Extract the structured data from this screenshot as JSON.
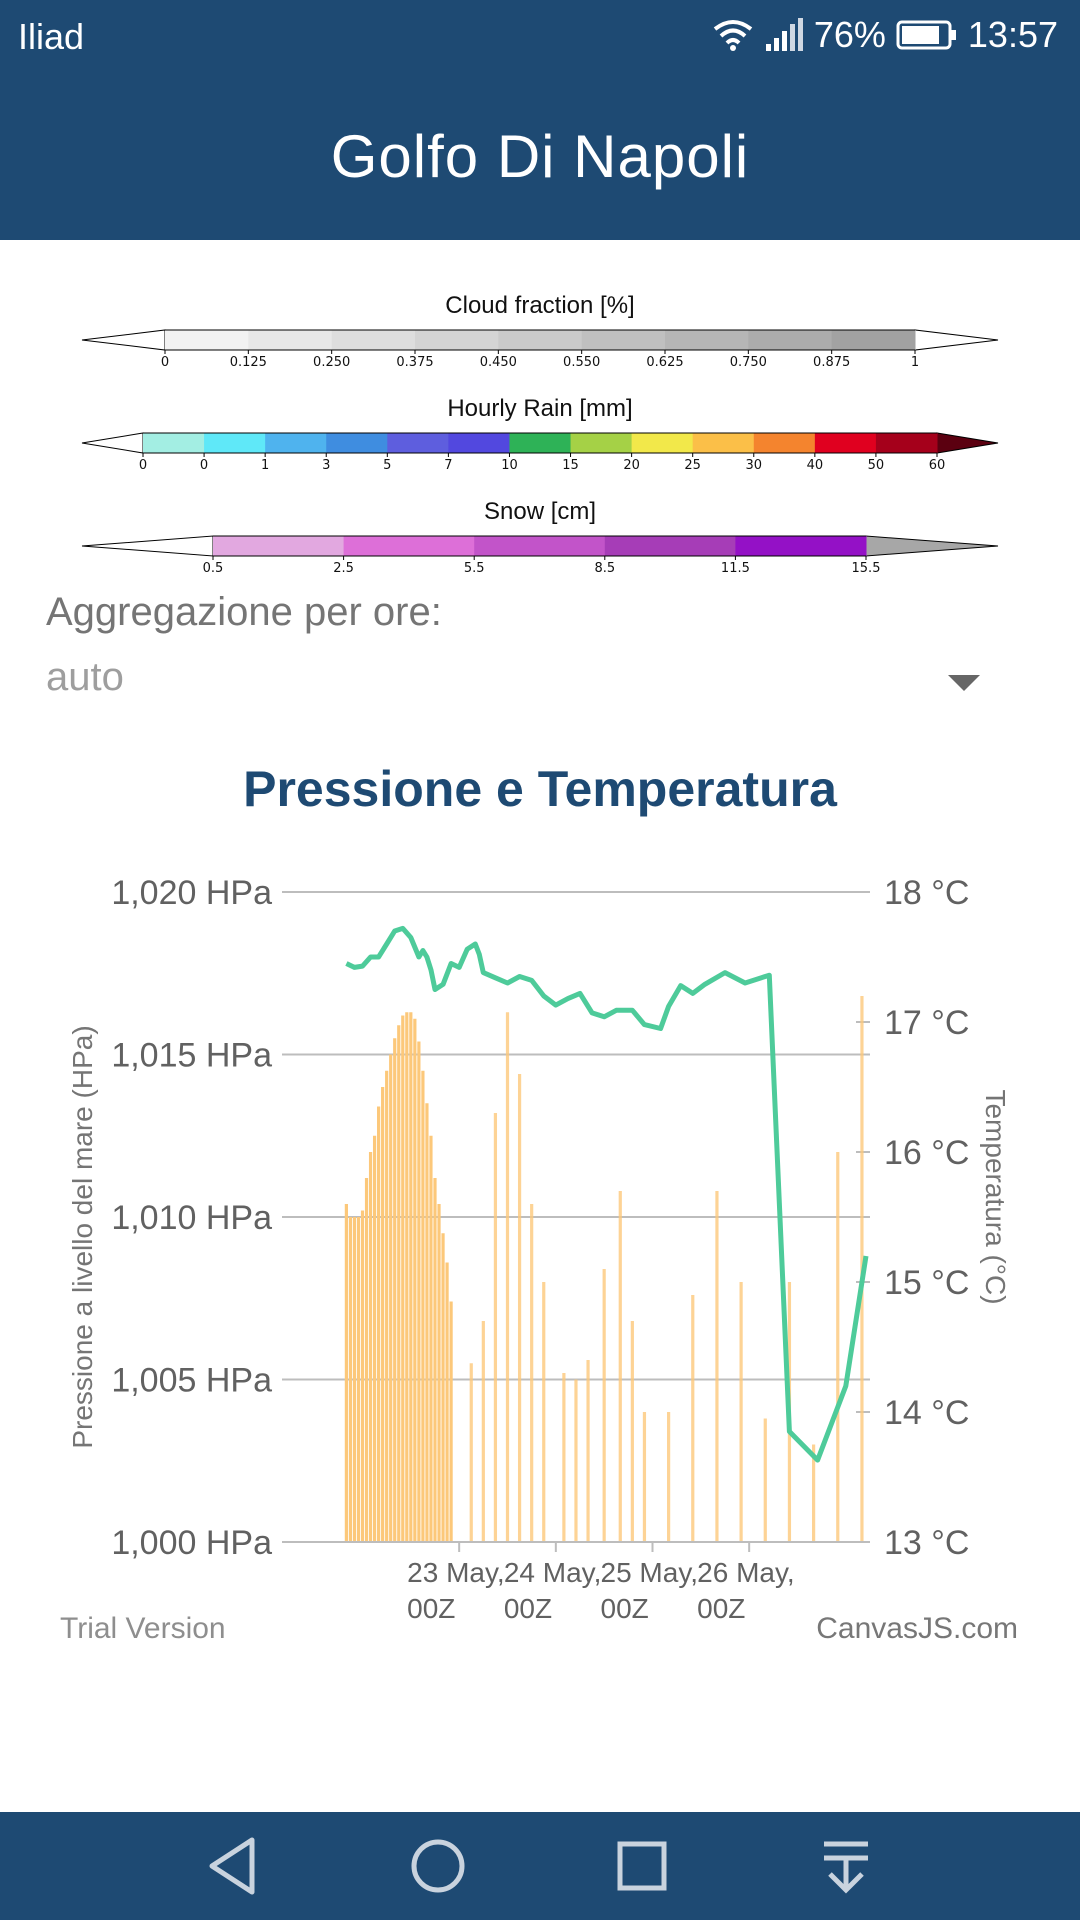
{
  "status_bar": {
    "carrier": "Iliad",
    "battery": "76%",
    "time": "13:57",
    "icons": [
      "wifi-icon",
      "signal-icon",
      "battery-icon"
    ]
  },
  "app_bar": {
    "title": "Golfo Di Napoli"
  },
  "legends": [
    {
      "title": "Cloud fraction [%]",
      "ticks": [
        "0",
        "0.125",
        "0.250",
        "0.375",
        "0.450",
        "0.550",
        "0.625",
        "0.750",
        "0.875",
        "1"
      ],
      "colors": [
        "#f2f2f2",
        "#e8e8e8",
        "#dedede",
        "#d4d4d4",
        "#cacaca",
        "#c0c0c0",
        "#b6b6b6",
        "#acacac",
        "#a2a2a2"
      ],
      "left_end": "#ffffff",
      "right_end": "#ffffff"
    },
    {
      "title": "Hourly Rain [mm]",
      "ticks": [
        "0",
        "0",
        "1",
        "3",
        "5",
        "7",
        "10",
        "15",
        "20",
        "25",
        "30",
        "40",
        "50",
        "60"
      ],
      "colors": [
        "#a3eee3",
        "#5fe8f8",
        "#4fb3ee",
        "#3f8de0",
        "#5e5ede",
        "#5248df",
        "#2eb257",
        "#a5d146",
        "#f2e84a",
        "#fbbf48",
        "#f4842e",
        "#e0001f",
        "#a5001b"
      ],
      "left_end": "#ffffff",
      "right_end": "#5b0010"
    },
    {
      "title": "Snow [cm]",
      "ticks": [
        "0.5",
        "2.5",
        "5.5",
        "8.5",
        "11.5",
        "15.5"
      ],
      "colors": [
        "#e2a8e0",
        "#dd6fd8",
        "#c254c9",
        "#a63db7",
        "#9411c6"
      ],
      "left_end": "#ffffff",
      "right_end": "#a7a7a7"
    }
  ],
  "aggregation": {
    "label": "Aggregazione per ore:",
    "value": "auto"
  },
  "chart_data": {
    "type": "bar",
    "title": "Pressione e Temperatura",
    "y_left": {
      "label": "Pressione a livello del mare (HPa)",
      "range": [
        1000,
        1020
      ],
      "ticks": [
        "1,000 HPa",
        "1,005 HPa",
        "1,010 HPa",
        "1,015 HPa",
        "1,020 HPa"
      ]
    },
    "y_right": {
      "label": "Temperatura (°C)",
      "range": [
        13,
        18
      ],
      "ticks": [
        "13 °C",
        "14 °C",
        "15 °C",
        "16 °C",
        "17 °C",
        "18 °C"
      ]
    },
    "x_range_hours": [
      -42,
      102
    ],
    "x_ticks": [
      {
        "h": 0,
        "label1": "23 May,",
        "label2": "00Z"
      },
      {
        "h": 24,
        "label1": "24 May,",
        "label2": "00Z"
      },
      {
        "h": 48,
        "label1": "25 May,",
        "label2": "00Z"
      },
      {
        "h": 72,
        "label1": "26 May,",
        "label2": "00Z"
      }
    ],
    "series": [
      {
        "name": "",
        "type": "bar",
        "axis": "left",
        "color": "#fcc87a",
        "points": [
          [
            -28,
            1010.4
          ],
          [
            -27,
            1010
          ],
          [
            -26,
            1010
          ],
          [
            -25,
            1010
          ],
          [
            -24,
            1010.2
          ],
          [
            -23,
            1011.2
          ],
          [
            -22,
            1012
          ],
          [
            -21,
            1012.5
          ],
          [
            -20,
            1013.4
          ],
          [
            -19,
            1014
          ],
          [
            -18,
            1014.5
          ],
          [
            -17,
            1015
          ],
          [
            -16,
            1015.5
          ],
          [
            -15,
            1015.9
          ],
          [
            -14,
            1016.2
          ],
          [
            -13,
            1016.3
          ],
          [
            -12,
            1016.3
          ],
          [
            -11,
            1016.1
          ],
          [
            -10,
            1015.4
          ],
          [
            -9,
            1014.5
          ],
          [
            -8,
            1013.5
          ],
          [
            -7,
            1012.5
          ],
          [
            -6,
            1011.2
          ],
          [
            -5,
            1010.4
          ],
          [
            -4,
            1009.5
          ],
          [
            -3,
            1008.6
          ],
          [
            -2,
            1007.4
          ],
          [
            3,
            1005.5
          ],
          [
            6,
            1006.8
          ],
          [
            9,
            1013.2
          ],
          [
            12,
            1016.3
          ],
          [
            15,
            1014.4
          ],
          [
            18,
            1010.4
          ],
          [
            21,
            1008
          ],
          [
            26,
            1005.2
          ],
          [
            29,
            1005
          ],
          [
            32,
            1005.6
          ],
          [
            36,
            1008.4
          ],
          [
            40,
            1010.8
          ],
          [
            43,
            1006.8
          ],
          [
            46,
            1004
          ],
          [
            52,
            1004
          ],
          [
            58,
            1007.6
          ],
          [
            64,
            1010.8
          ],
          [
            70,
            1008
          ],
          [
            76,
            1003.8
          ],
          [
            82,
            1008
          ],
          [
            88,
            1003
          ],
          [
            94,
            1012
          ],
          [
            100,
            1016.8
          ]
        ]
      },
      {
        "name": "",
        "type": "line",
        "axis": "right",
        "color": "#4ecb9a",
        "points": [
          [
            -28,
            17.45
          ],
          [
            -26,
            17.42
          ],
          [
            -24,
            17.43
          ],
          [
            -22,
            17.5
          ],
          [
            -20,
            17.5
          ],
          [
            -18,
            17.6
          ],
          [
            -16,
            17.7
          ],
          [
            -14,
            17.72
          ],
          [
            -12,
            17.65
          ],
          [
            -10,
            17.5
          ],
          [
            -9,
            17.55
          ],
          [
            -8,
            17.5
          ],
          [
            -7,
            17.4
          ],
          [
            -6,
            17.25
          ],
          [
            -4,
            17.29
          ],
          [
            -2,
            17.45
          ],
          [
            0,
            17.42
          ],
          [
            2,
            17.56
          ],
          [
            4,
            17.6
          ],
          [
            5,
            17.52
          ],
          [
            6,
            17.38
          ],
          [
            9,
            17.34
          ],
          [
            12,
            17.3
          ],
          [
            15,
            17.35
          ],
          [
            18,
            17.32
          ],
          [
            21,
            17.2
          ],
          [
            24,
            17.13
          ],
          [
            27,
            17.18
          ],
          [
            30,
            17.22
          ],
          [
            33,
            17.07
          ],
          [
            36,
            17.04
          ],
          [
            39,
            17.09
          ],
          [
            43,
            17.09
          ],
          [
            46,
            16.98
          ],
          [
            50,
            16.95
          ],
          [
            52,
            17.12
          ],
          [
            55,
            17.28
          ],
          [
            58,
            17.22
          ],
          [
            61,
            17.29
          ],
          [
            66,
            17.38
          ],
          [
            71,
            17.3
          ],
          [
            77,
            17.36
          ],
          [
            82,
            13.85
          ],
          [
            89,
            13.63
          ],
          [
            96,
            14.2
          ],
          [
            101,
            15.2
          ]
        ]
      }
    ],
    "watermark_left": "Trial Version",
    "watermark_right": "CanvasJS.com"
  },
  "nav_bar": {
    "buttons": [
      "back-icon",
      "home-icon",
      "recents-icon",
      "notifications-pulldown-icon"
    ]
  }
}
